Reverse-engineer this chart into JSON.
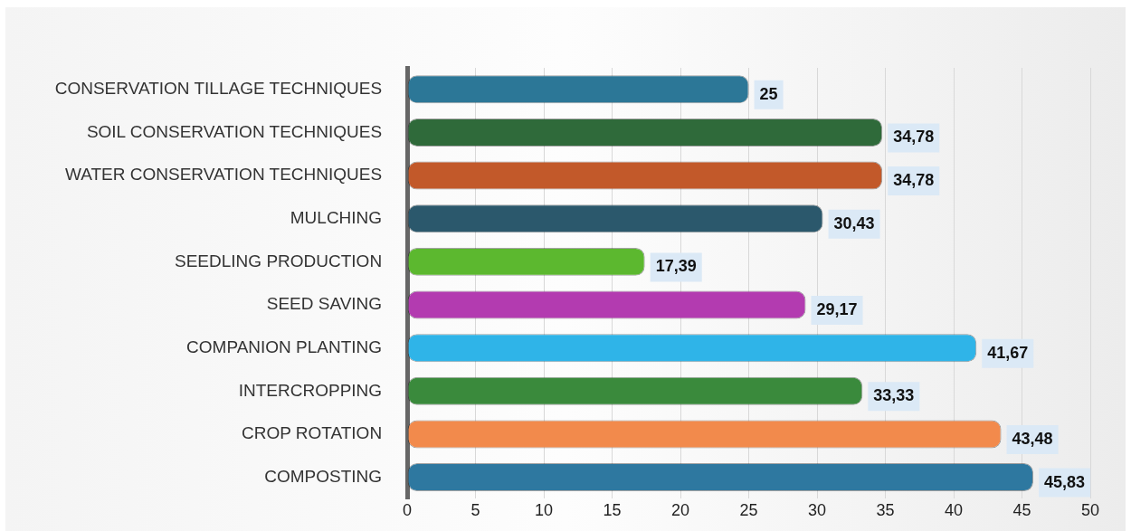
{
  "chart_data": {
    "type": "bar",
    "orientation": "horizontal",
    "categories": [
      "CONSERVATION TILLAGE TECHNIQUES",
      "SOIL CONSERVATION TECHNIQUES",
      "WATER CONSERVATION TECHNIQUES",
      "MULCHING",
      "SEEDLING PRODUCTION",
      "SEED SAVING",
      "COMPANION PLANTING",
      "INTERCROPPING",
      "CROP ROTATION",
      "COMPOSTING"
    ],
    "values": [
      25,
      34.78,
      34.78,
      30.43,
      17.39,
      29.17,
      41.67,
      33.33,
      43.48,
      45.83
    ],
    "value_labels": [
      "25",
      "34,78",
      "34,78",
      "30,43",
      "17,39",
      "29,17",
      "41,67",
      "33,33",
      "43,48",
      "45,83"
    ],
    "colors": [
      "#2c7797",
      "#2f6a3a",
      "#c2592a",
      "#2b586c",
      "#5cb82f",
      "#b33bb0",
      "#2fb4e8",
      "#3a8a3c",
      "#f28a4c",
      "#2e78a0"
    ],
    "xlim": [
      0,
      50
    ],
    "xticks": [
      0,
      5,
      10,
      15,
      20,
      25,
      30,
      35,
      40,
      45,
      50
    ],
    "grid": "x"
  }
}
